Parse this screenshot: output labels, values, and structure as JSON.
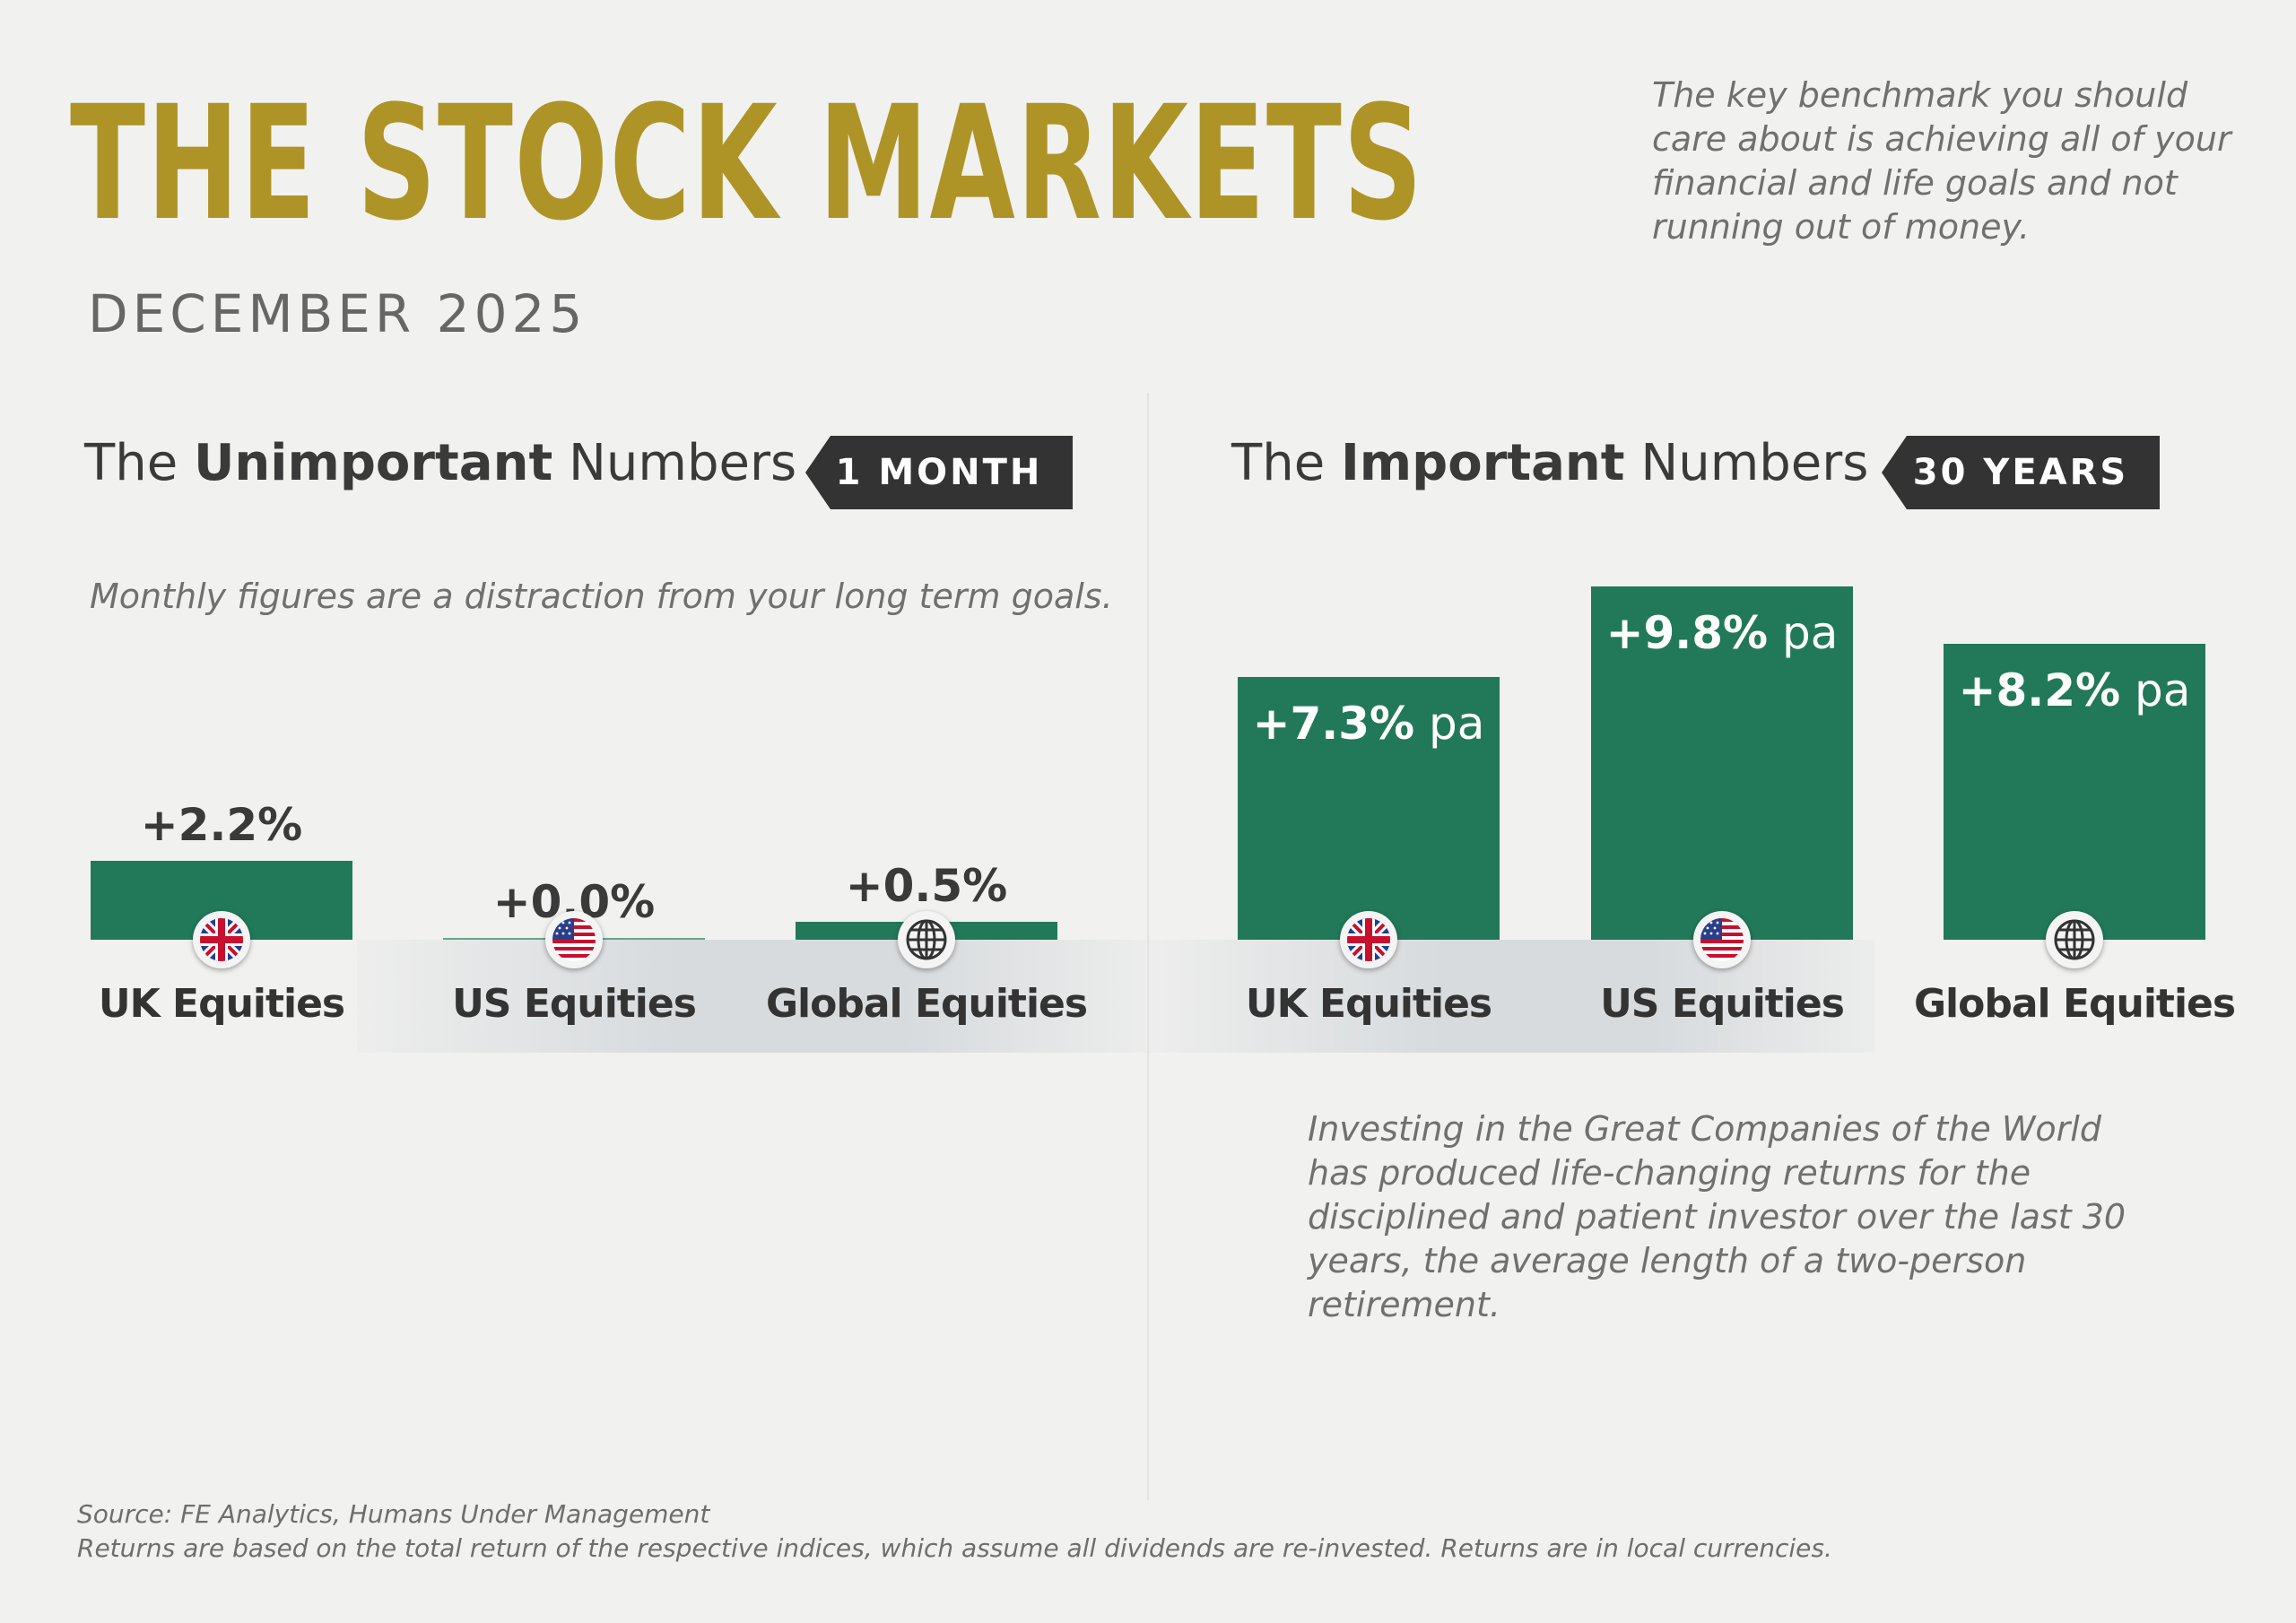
{
  "header": {
    "title": "THE STOCK MARKETS",
    "subtitle": "DECEMBER 2025",
    "intro": "The key benchmark you should care about is achieving all of your financial and life goals and not running out of money."
  },
  "left": {
    "title_pre": "The ",
    "title_bold": "Unimportant",
    "title_post": " Numbers",
    "badge": "1 MONTH",
    "note": "Monthly figures are a distraction from your long term goals."
  },
  "right": {
    "title_pre": "The ",
    "title_bold": "Important",
    "title_post": " Numbers",
    "badge": "30 YEARS",
    "note": "Investing in the Great Companies of the World has produced life-changing returns for the disciplined and patient investor over the last 30 years, the average length of a two-person retirement."
  },
  "chart_data": [
    {
      "type": "bar",
      "categories": [
        "UK Equities",
        "US Equities",
        "Global Equities"
      ],
      "values": [
        2.2,
        0.0,
        0.5
      ],
      "value_labels": [
        "+2.2%",
        "+0.0%",
        "+0.5%"
      ],
      "icons": [
        "uk-flag-icon",
        "us-flag-icon",
        "globe-icon"
      ],
      "bar_color": "#22795a"
    },
    {
      "type": "bar",
      "categories": [
        "UK Equities",
        "US Equities",
        "Global Equities"
      ],
      "values": [
        7.3,
        9.8,
        8.2
      ],
      "value_labels": [
        "+7.3%",
        "+9.8%",
        "+8.2%"
      ],
      "unit_label": "pa",
      "icons": [
        "uk-flag-icon",
        "us-flag-icon",
        "globe-icon"
      ],
      "bar_color": "#22795a"
    }
  ],
  "footer": {
    "source": "Source: FE Analytics, Humans Under Management",
    "disclaimer": "Returns are based on the total return of the respective indices, which assume all dividends are re-invested. Returns are in local currencies."
  }
}
